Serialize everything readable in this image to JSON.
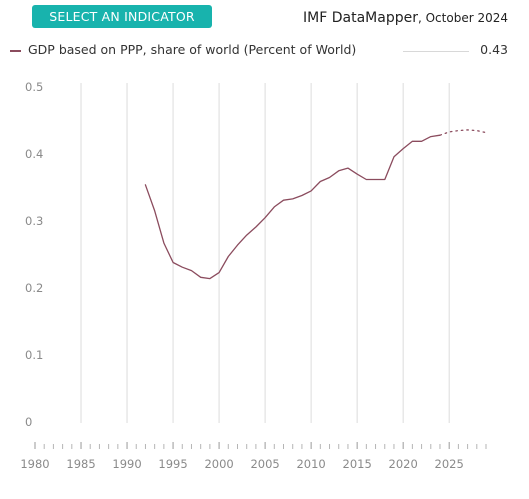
{
  "header": {
    "select_button": "SELECT AN INDICATOR",
    "source_name": "IMF DataMapper",
    "source_date": ", October 2024"
  },
  "legend": {
    "label": "GDP based on PPP, share of world (Percent of World)",
    "value": "0.43"
  },
  "colors": {
    "accent": "#18b3ad",
    "series": "#8b4c5e",
    "grid": "#dcdcdc",
    "axis_text": "#8a8a8a"
  },
  "chart_data": {
    "type": "line",
    "title": "",
    "xlabel": "",
    "ylabel": "",
    "xlim": [
      1980,
      2029
    ],
    "ylim": [
      0,
      0.5
    ],
    "grid": true,
    "legend_position": "top",
    "y_ticks": [
      "0.5",
      "0.4",
      "0.3",
      "0.2",
      "0.1",
      "0"
    ],
    "x_ticks": [
      "1980",
      "1985",
      "1990",
      "1995",
      "2000",
      "2005",
      "2010",
      "2015",
      "2020",
      "2025"
    ],
    "series": [
      {
        "name": "GDP based on PPP, share of world (Percent of World)",
        "x": [
          1992,
          1993,
          1994,
          1995,
          1996,
          1997,
          1998,
          1999,
          2000,
          2001,
          2002,
          2003,
          2004,
          2005,
          2006,
          2007,
          2008,
          2009,
          2010,
          2011,
          2012,
          2013,
          2014,
          2015,
          2016,
          2017,
          2018,
          2019,
          2020,
          2021,
          2022,
          2023,
          2024
        ],
        "y": [
          0.354,
          0.315,
          0.267,
          0.238,
          0.231,
          0.226,
          0.216,
          0.214,
          0.223,
          0.247,
          0.264,
          0.279,
          0.291,
          0.305,
          0.321,
          0.331,
          0.333,
          0.338,
          0.345,
          0.359,
          0.365,
          0.375,
          0.379,
          0.37,
          0.362,
          0.362,
          0.362,
          0.396,
          0.408,
          0.419,
          0.419,
          0.426,
          0.428
        ]
      },
      {
        "name": "",
        "projection": true,
        "x": [
          2024,
          2025,
          2026,
          2027,
          2028,
          2029
        ],
        "y": [
          0.428,
          0.433,
          0.435,
          0.436,
          0.435,
          0.432
        ]
      }
    ]
  }
}
